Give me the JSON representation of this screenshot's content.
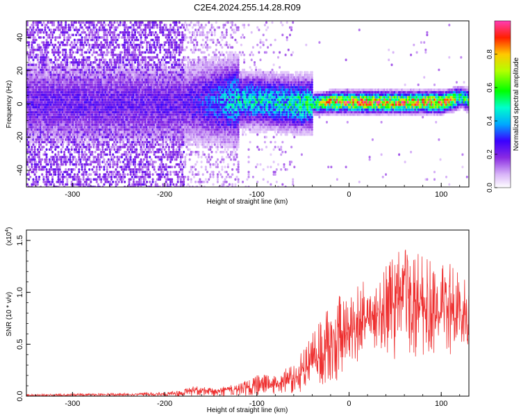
{
  "title": "C2E4.2024.255.14.28.R09",
  "chart_data": [
    {
      "type": "heatmap",
      "xlabel": "Height of straight line (km)",
      "ylabel": "Frequency (Hz)",
      "xlim": [
        -350,
        130
      ],
      "ylim": [
        -50,
        50
      ],
      "x_ticks": [
        -300,
        -200,
        -100,
        0,
        100
      ],
      "x_tick_labels": [
        "-300",
        "-200",
        "-100",
        "0",
        "100"
      ],
      "y_ticks": [
        -40,
        -20,
        0,
        20,
        40
      ],
      "y_tick_labels": [
        "-40",
        "-20",
        "0",
        "20",
        "40"
      ],
      "colorbar": {
        "label": "Normalized spectral amplitude",
        "range": [
          0,
          1
        ],
        "ticks": [
          0.0,
          0.2,
          0.4,
          0.6,
          0.8
        ],
        "tick_labels": [
          "0.0",
          "0.2",
          "0.4",
          "0.6",
          "0.8"
        ]
      },
      "ridge": {
        "x": [
          -180,
          -150,
          -120,
          -100,
          -80,
          -60,
          -40,
          -20,
          0,
          20,
          40,
          60,
          80,
          100,
          110,
          120,
          130
        ],
        "frequency": [
          0,
          1,
          2,
          2,
          1,
          0,
          0,
          1,
          1,
          1,
          1,
          1,
          1,
          1,
          2,
          4,
          2
        ],
        "peak_amplitude": [
          0.25,
          0.35,
          0.5,
          0.5,
          0.5,
          0.55,
          0.6,
          0.9,
          0.95,
          0.95,
          0.95,
          0.95,
          0.95,
          0.95,
          0.9,
          0.6,
          0.7
        ]
      }
    },
    {
      "type": "line",
      "xlabel": "Height of straight line (km)",
      "ylabel": "SNR (10 * v/v)",
      "y_multiplier_label": "(x10",
      "y_multiplier_exp": "4",
      "y_multiplier_close": ")",
      "xlim": [
        -350,
        130
      ],
      "ylim": [
        0,
        1.6
      ],
      "x_ticks": [
        -300,
        -200,
        -100,
        0,
        100
      ],
      "x_tick_labels": [
        "-300",
        "-200",
        "-100",
        "0",
        "100"
      ],
      "y_ticks": [
        0,
        0.5,
        1.0,
        1.5
      ],
      "y_tick_labels": [
        "0.0",
        "0.5",
        "1.0",
        "1.5"
      ],
      "color": "#ee3030",
      "series": [
        {
          "x": [
            -350,
            -300,
            -250,
            -200,
            -180,
            -170,
            -150,
            -120,
            -100,
            -80,
            -60,
            -50,
            -40,
            -30,
            -20,
            -10,
            0,
            10,
            20,
            30,
            40,
            50,
            60,
            70,
            80,
            90,
            100,
            110,
            120,
            130
          ],
          "values": [
            0.01,
            0.012,
            0.015,
            0.02,
            0.03,
            0.06,
            0.05,
            0.07,
            0.1,
            0.12,
            0.15,
            0.22,
            0.3,
            0.4,
            0.5,
            0.55,
            0.6,
            0.7,
            0.75,
            0.8,
            0.85,
            0.9,
            0.95,
            0.95,
            0.85,
            0.8,
            0.8,
            0.85,
            0.8,
            0.75
          ],
          "envelope": [
            0.02,
            0.025,
            0.03,
            0.04,
            0.06,
            0.1,
            0.08,
            0.12,
            0.2,
            0.22,
            0.3,
            0.45,
            0.6,
            0.75,
            0.9,
            1.0,
            1.05,
            1.1,
            1.15,
            1.2,
            1.3,
            1.35,
            1.45,
            1.4,
            1.35,
            1.3,
            1.35,
            1.3,
            1.25,
            1.2
          ],
          "floor": [
            0,
            0,
            0,
            0,
            0,
            0,
            0,
            0,
            0.01,
            0.02,
            0.02,
            0.04,
            0.05,
            0.08,
            0.1,
            0.15,
            0.2,
            0.3,
            0.4,
            0.45,
            0.4,
            0.35,
            0.3,
            0.3,
            0.35,
            0.4,
            0.45,
            0.4,
            0.5,
            0.45
          ]
        }
      ]
    }
  ]
}
